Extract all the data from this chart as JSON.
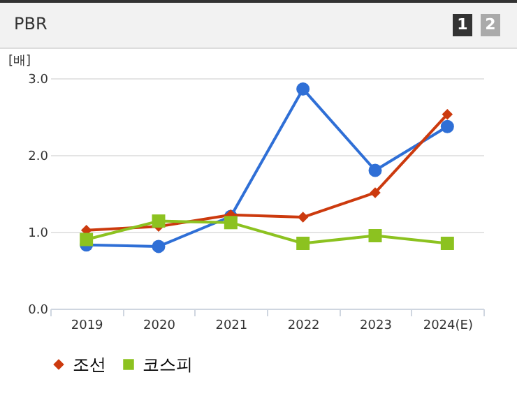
{
  "chart_data": {
    "type": "line",
    "title": "PBR",
    "ylabel": "[배]",
    "annotations": [
      "1",
      "2"
    ],
    "categories": [
      "2019",
      "2020",
      "2021",
      "2022",
      "2023",
      "2024(E)"
    ],
    "series": [
      {
        "color": "#2f6fd6",
        "marker": "circle",
        "values": [
          0.83,
          0.81,
          1.2,
          2.86,
          1.8,
          2.37
        ]
      },
      {
        "name": "조선",
        "color": "#cc3a0e",
        "marker": "diamond",
        "values": [
          1.02,
          1.07,
          1.22,
          1.19,
          1.51,
          2.53
        ]
      },
      {
        "name": "코스피",
        "color": "#8cc220",
        "marker": "square",
        "values": [
          0.9,
          1.14,
          1.12,
          0.85,
          0.95,
          0.85
        ]
      }
    ],
    "ylim": [
      0,
      3
    ],
    "yticks": [
      {
        "value": 0,
        "label": "0.0"
      },
      {
        "value": 1,
        "label": "1.0"
      },
      {
        "value": 2,
        "label": "2.0"
      },
      {
        "value": 3,
        "label": "3.0"
      }
    ],
    "grid": "y",
    "legend": "bottom"
  }
}
